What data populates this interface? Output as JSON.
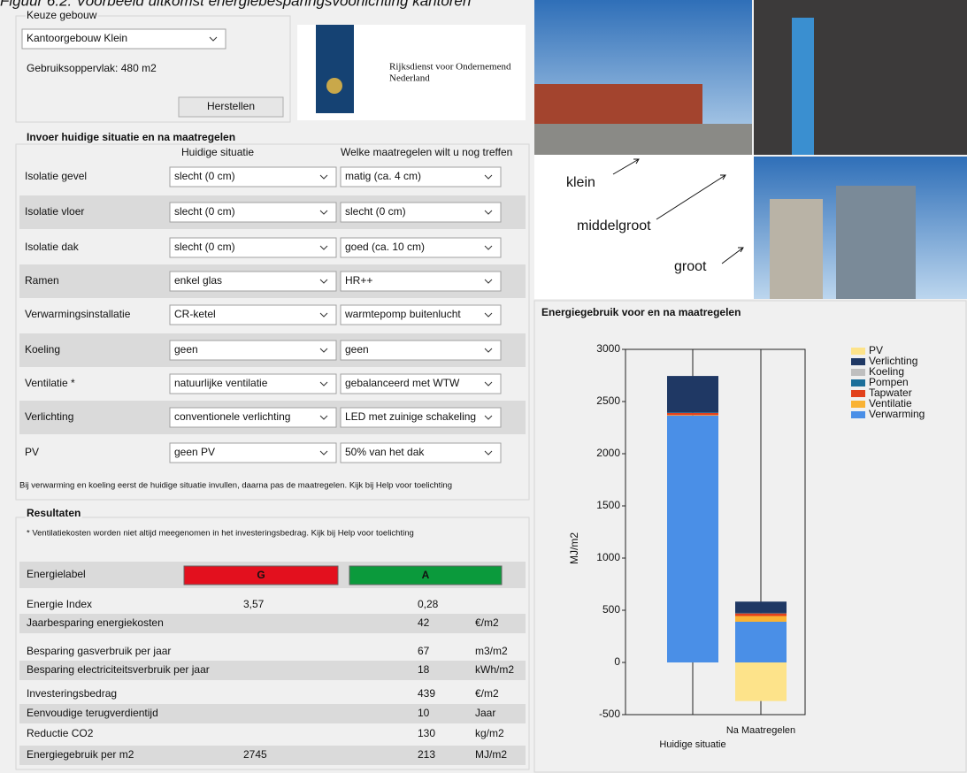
{
  "caption": "Figuur 6.2: Voorbeeld uitkomst energiebesparingsvoorlichting kantoren",
  "building": {
    "group_title": "Keuze gebouw",
    "selected": "Kantoorgebouw Klein",
    "area": "Gebruiksoppervlak:  480 m2",
    "reset_button": "Herstellen"
  },
  "logo": {
    "line1": "Rijksdienst voor Ondernemend",
    "line2": "Nederland"
  },
  "photos": {
    "labels": [
      "klein",
      "middelgroot",
      "groot"
    ]
  },
  "input": {
    "title": "Invoer huidige situatie en na maatregelen",
    "col_current": "Huidige situatie",
    "col_target": "Welke maatregelen wilt u nog treffen",
    "rows": [
      {
        "label": "Isolatie gevel",
        "current": "slecht (0 cm)",
        "target": "matig (ca. 4 cm)"
      },
      {
        "label": "Isolatie vloer",
        "current": "slecht (0 cm)",
        "target": "slecht (0 cm)"
      },
      {
        "label": "Isolatie dak",
        "current": "slecht (0 cm)",
        "target": "goed (ca. 10 cm)"
      },
      {
        "label": "Ramen",
        "current": "enkel glas",
        "target": "HR++"
      },
      {
        "label": "Verwarmingsinstallatie",
        "current": "CR-ketel",
        "target": "warmtepomp buitenlucht"
      },
      {
        "label": "Koeling",
        "current": "geen",
        "target": "geen"
      },
      {
        "label": "Ventilatie *",
        "current": "natuurlijke ventilatie",
        "target": "gebalanceerd met WTW"
      },
      {
        "label": "Verlichting",
        "current": "conventionele verlichting",
        "target": "LED met zuinige schakeling"
      },
      {
        "label": "PV",
        "current": "geen PV",
        "target": "50% van het dak"
      }
    ],
    "note": "Bij verwarming en koeling eerst de huidige situatie invullen, daarna pas de maatregelen. Kijk bij Help voor toelichting"
  },
  "results": {
    "title": "Resultaten",
    "note": "* Ventilatiekosten worden niet altijd meegenomen in het investeringsbedrag. Kijk bij Help voor toelichting",
    "label_row": {
      "label": "Energielabel",
      "current": "G",
      "after": "A"
    },
    "rows": [
      {
        "label": "Energie Index",
        "current": "3,57",
        "after": "0,28"
      },
      {
        "label": "Jaarbesparing energiekosten",
        "after": 42,
        "unit": "€/m2"
      },
      {
        "label": "Besparing gasverbruik per jaar",
        "after": 67,
        "unit": "m3/m2"
      },
      {
        "label": "Besparing electriciteitsverbruik per jaar",
        "after": 18,
        "unit": "kWh/m2"
      },
      {
        "label": "Investeringsbedrag",
        "after": 439,
        "unit": "€/m2"
      },
      {
        "label": "Eenvoudige terugverdientijd",
        "after": 10,
        "unit": "Jaar"
      },
      {
        "label": "Reductie CO2",
        "after": 130,
        "unit": "kg/m2"
      },
      {
        "label": "Energiegebruik per m2",
        "current": 2745,
        "after": 213,
        "unit": "MJ/m2"
      }
    ]
  },
  "chart_data": {
    "type": "bar",
    "stacked": true,
    "title": "Energiegebruik voor en na maatregelen",
    "y_label": "MJ/m2",
    "categories": [
      "Huidige situatie",
      "Na Maatregelen"
    ],
    "series": [
      {
        "name": "PV",
        "color": "#fde38a",
        "values": [
          0,
          -370
        ]
      },
      {
        "name": "Verlichting",
        "color": "#1f3864",
        "values": [
          350,
          108
        ]
      },
      {
        "name": "Koeling",
        "color": "#bfbfbf",
        "values": [
          0,
          0
        ]
      },
      {
        "name": "Pompen",
        "color": "#1b6f9a",
        "values": [
          5,
          5
        ]
      },
      {
        "name": "Tapwater",
        "color": "#e2411c",
        "values": [
          20,
          25
        ]
      },
      {
        "name": "Ventilatie",
        "color": "#f9b233",
        "values": [
          5,
          55
        ]
      },
      {
        "name": "Verwarming",
        "color": "#4a8fe7",
        "values": [
          2365,
          390
        ]
      }
    ],
    "ylim": [
      -500,
      3000
    ],
    "yticks": [
      -500,
      0,
      500,
      1000,
      1500,
      2000,
      2500,
      3000
    ],
    "legend": "top-right"
  }
}
